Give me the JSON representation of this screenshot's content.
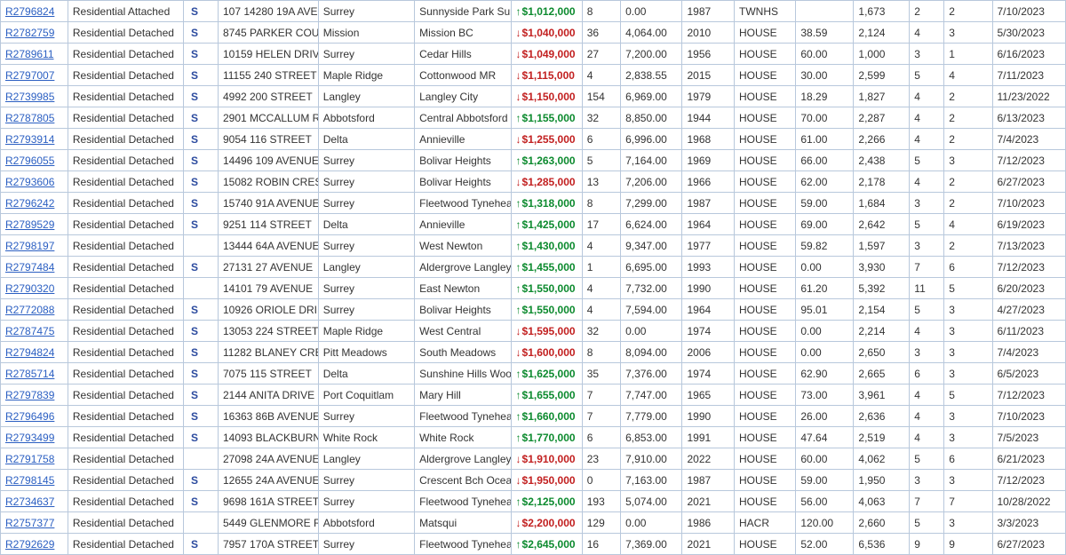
{
  "rows": [
    {
      "mls": "R2796824",
      "type": "Residential Attached",
      "s": "S",
      "addr": "107 14280 19A AVE",
      "city": "Surrey",
      "area": "Sunnyside Park Sur",
      "dir": "up",
      "price": "$1,012,000",
      "dom": "8",
      "lot": "0.00",
      "year": "1987",
      "btype": "TWNHS",
      "age": "",
      "sqft": "1,673",
      "bed": "2",
      "bath": "2",
      "date": "7/10/2023"
    },
    {
      "mls": "R2782759",
      "type": "Residential Detached",
      "s": "S",
      "addr": "8745 PARKER COU",
      "city": "Mission",
      "area": "Mission BC",
      "dir": "down",
      "price": "$1,040,000",
      "dom": "36",
      "lot": "4,064.00",
      "year": "2010",
      "btype": "HOUSE",
      "age": "38.59",
      "sqft": "2,124",
      "bed": "4",
      "bath": "3",
      "date": "5/30/2023"
    },
    {
      "mls": "R2789611",
      "type": "Residential Detached",
      "s": "S",
      "addr": "10159 HELEN DRIV",
      "city": "Surrey",
      "area": "Cedar Hills",
      "dir": "down",
      "price": "$1,049,000",
      "dom": "27",
      "lot": "7,200.00",
      "year": "1956",
      "btype": "HOUSE",
      "age": "60.00",
      "sqft": "1,000",
      "bed": "3",
      "bath": "1",
      "date": "6/16/2023"
    },
    {
      "mls": "R2797007",
      "type": "Residential Detached",
      "s": "S",
      "addr": "11155 240 STREET",
      "city": "Maple Ridge",
      "area": "Cottonwood MR",
      "dir": "down",
      "price": "$1,115,000",
      "dom": "4",
      "lot": "2,838.55",
      "year": "2015",
      "btype": "HOUSE",
      "age": "30.00",
      "sqft": "2,599",
      "bed": "5",
      "bath": "4",
      "date": "7/11/2023"
    },
    {
      "mls": "R2739985",
      "type": "Residential Detached",
      "s": "S",
      "addr": "4992 200 STREET",
      "city": "Langley",
      "area": "Langley City",
      "dir": "down",
      "price": "$1,150,000",
      "dom": "154",
      "lot": "6,969.00",
      "year": "1979",
      "btype": "HOUSE",
      "age": "18.29",
      "sqft": "1,827",
      "bed": "4",
      "bath": "2",
      "date": "11/23/2022"
    },
    {
      "mls": "R2787805",
      "type": "Residential Detached",
      "s": "S",
      "addr": "2901 MCCALLUM R",
      "city": "Abbotsford",
      "area": "Central Abbotsford",
      "dir": "up",
      "price": "$1,155,000",
      "dom": "32",
      "lot": "8,850.00",
      "year": "1944",
      "btype": "HOUSE",
      "age": "70.00",
      "sqft": "2,287",
      "bed": "4",
      "bath": "2",
      "date": "6/13/2023"
    },
    {
      "mls": "R2793914",
      "type": "Residential Detached",
      "s": "S",
      "addr": "9054 116 STREET",
      "city": "Delta",
      "area": "Annieville",
      "dir": "down",
      "price": "$1,255,000",
      "dom": "6",
      "lot": "6,996.00",
      "year": "1968",
      "btype": "HOUSE",
      "age": "61.00",
      "sqft": "2,266",
      "bed": "4",
      "bath": "2",
      "date": "7/4/2023"
    },
    {
      "mls": "R2796055",
      "type": "Residential Detached",
      "s": "S",
      "addr": "14496 109 AVENUE",
      "city": "Surrey",
      "area": "Bolivar Heights",
      "dir": "up",
      "price": "$1,263,000",
      "dom": "5",
      "lot": "7,164.00",
      "year": "1969",
      "btype": "HOUSE",
      "age": "66.00",
      "sqft": "2,438",
      "bed": "5",
      "bath": "3",
      "date": "7/12/2023"
    },
    {
      "mls": "R2793606",
      "type": "Residential Detached",
      "s": "S",
      "addr": "15082 ROBIN CRES",
      "city": "Surrey",
      "area": "Bolivar Heights",
      "dir": "down",
      "price": "$1,285,000",
      "dom": "13",
      "lot": "7,206.00",
      "year": "1966",
      "btype": "HOUSE",
      "age": "62.00",
      "sqft": "2,178",
      "bed": "4",
      "bath": "2",
      "date": "6/27/2023"
    },
    {
      "mls": "R2796242",
      "type": "Residential Detached",
      "s": "S",
      "addr": "15740 91A AVENUE",
      "city": "Surrey",
      "area": "Fleetwood Tynehea",
      "dir": "up",
      "price": "$1,318,000",
      "dom": "8",
      "lot": "7,299.00",
      "year": "1987",
      "btype": "HOUSE",
      "age": "59.00",
      "sqft": "1,684",
      "bed": "3",
      "bath": "2",
      "date": "7/10/2023"
    },
    {
      "mls": "R2789529",
      "type": "Residential Detached",
      "s": "S",
      "addr": "9251 114 STREET",
      "city": "Delta",
      "area": "Annieville",
      "dir": "up",
      "price": "$1,425,000",
      "dom": "17",
      "lot": "6,624.00",
      "year": "1964",
      "btype": "HOUSE",
      "age": "69.00",
      "sqft": "2,642",
      "bed": "5",
      "bath": "4",
      "date": "6/19/2023"
    },
    {
      "mls": "R2798197",
      "type": "Residential Detached",
      "s": "",
      "addr": "13444 64A AVENUE",
      "city": "Surrey",
      "area": "West Newton",
      "dir": "up",
      "price": "$1,430,000",
      "dom": "4",
      "lot": "9,347.00",
      "year": "1977",
      "btype": "HOUSE",
      "age": "59.82",
      "sqft": "1,597",
      "bed": "3",
      "bath": "2",
      "date": "7/13/2023"
    },
    {
      "mls": "R2797484",
      "type": "Residential Detached",
      "s": "S",
      "addr": "27131 27 AVENUE",
      "city": "Langley",
      "area": "Aldergrove Langley",
      "dir": "up",
      "price": "$1,455,000",
      "dom": "1",
      "lot": "6,695.00",
      "year": "1993",
      "btype": "HOUSE",
      "age": "0.00",
      "sqft": "3,930",
      "bed": "7",
      "bath": "6",
      "date": "7/12/2023"
    },
    {
      "mls": "R2790320",
      "type": "Residential Detached",
      "s": "",
      "addr": "14101 79 AVENUE",
      "city": "Surrey",
      "area": "East Newton",
      "dir": "up",
      "price": "$1,550,000",
      "dom": "4",
      "lot": "7,732.00",
      "year": "1990",
      "btype": "HOUSE",
      "age": "61.20",
      "sqft": "5,392",
      "bed": "11",
      "bath": "5",
      "date": "6/20/2023"
    },
    {
      "mls": "R2772088",
      "type": "Residential Detached",
      "s": "S",
      "addr": "10926 ORIOLE DRI",
      "city": "Surrey",
      "area": "Bolivar Heights",
      "dir": "up",
      "price": "$1,550,000",
      "dom": "4",
      "lot": "7,594.00",
      "year": "1964",
      "btype": "HOUSE",
      "age": "95.01",
      "sqft": "2,154",
      "bed": "5",
      "bath": "3",
      "date": "4/27/2023"
    },
    {
      "mls": "R2787475",
      "type": "Residential Detached",
      "s": "S",
      "addr": "13053 224 STREET",
      "city": "Maple Ridge",
      "area": "West Central",
      "dir": "down",
      "price": "$1,595,000",
      "dom": "32",
      "lot": "0.00",
      "year": "1974",
      "btype": "HOUSE",
      "age": "0.00",
      "sqft": "2,214",
      "bed": "4",
      "bath": "3",
      "date": "6/11/2023"
    },
    {
      "mls": "R2794824",
      "type": "Residential Detached",
      "s": "S",
      "addr": "11282 BLANEY CRE",
      "city": "Pitt Meadows",
      "area": "South Meadows",
      "dir": "down",
      "price": "$1,600,000",
      "dom": "8",
      "lot": "8,094.00",
      "year": "2006",
      "btype": "HOUSE",
      "age": "0.00",
      "sqft": "2,650",
      "bed": "3",
      "bath": "3",
      "date": "7/4/2023"
    },
    {
      "mls": "R2785714",
      "type": "Residential Detached",
      "s": "S",
      "addr": "7075 115 STREET",
      "city": "Delta",
      "area": "Sunshine Hills Woo",
      "dir": "up",
      "price": "$1,625,000",
      "dom": "35",
      "lot": "7,376.00",
      "year": "1974",
      "btype": "HOUSE",
      "age": "62.90",
      "sqft": "2,665",
      "bed": "6",
      "bath": "3",
      "date": "6/5/2023"
    },
    {
      "mls": "R2797839",
      "type": "Residential Detached",
      "s": "S",
      "addr": "2144 ANITA DRIVE",
      "city": "Port Coquitlam",
      "area": "Mary Hill",
      "dir": "up",
      "price": "$1,655,000",
      "dom": "7",
      "lot": "7,747.00",
      "year": "1965",
      "btype": "HOUSE",
      "age": "73.00",
      "sqft": "3,961",
      "bed": "4",
      "bath": "5",
      "date": "7/12/2023"
    },
    {
      "mls": "R2796496",
      "type": "Residential Detached",
      "s": "S",
      "addr": "16363 86B AVENUE",
      "city": "Surrey",
      "area": "Fleetwood Tynehea",
      "dir": "up",
      "price": "$1,660,000",
      "dom": "7",
      "lot": "7,779.00",
      "year": "1990",
      "btype": "HOUSE",
      "age": "26.00",
      "sqft": "2,636",
      "bed": "4",
      "bath": "3",
      "date": "7/10/2023"
    },
    {
      "mls": "R2793499",
      "type": "Residential Detached",
      "s": "S",
      "addr": "14093 BLACKBURN",
      "city": "White Rock",
      "area": "White Rock",
      "dir": "up",
      "price": "$1,770,000",
      "dom": "6",
      "lot": "6,853.00",
      "year": "1991",
      "btype": "HOUSE",
      "age": "47.64",
      "sqft": "2,519",
      "bed": "4",
      "bath": "3",
      "date": "7/5/2023"
    },
    {
      "mls": "R2791758",
      "type": "Residential Detached",
      "s": "",
      "addr": "27098 24A AVENUE",
      "city": "Langley",
      "area": "Aldergrove Langley",
      "dir": "down",
      "price": "$1,910,000",
      "dom": "23",
      "lot": "7,910.00",
      "year": "2022",
      "btype": "HOUSE",
      "age": "60.00",
      "sqft": "4,062",
      "bed": "5",
      "bath": "6",
      "date": "6/21/2023"
    },
    {
      "mls": "R2798145",
      "type": "Residential Detached",
      "s": "S",
      "addr": "12655 24A AVENUE",
      "city": "Surrey",
      "area": "Crescent Bch Ocea",
      "dir": "down",
      "price": "$1,950,000",
      "dom": "0",
      "lot": "7,163.00",
      "year": "1987",
      "btype": "HOUSE",
      "age": "59.00",
      "sqft": "1,950",
      "bed": "3",
      "bath": "3",
      "date": "7/12/2023"
    },
    {
      "mls": "R2734637",
      "type": "Residential Detached",
      "s": "S",
      "addr": "9698 161A STREET",
      "city": "Surrey",
      "area": "Fleetwood Tynehea",
      "dir": "up",
      "price": "$2,125,000",
      "dom": "193",
      "lot": "5,074.00",
      "year": "2021",
      "btype": "HOUSE",
      "age": "56.00",
      "sqft": "4,063",
      "bed": "7",
      "bath": "7",
      "date": "10/28/2022"
    },
    {
      "mls": "R2757377",
      "type": "Residential Detached",
      "s": "",
      "addr": "5449 GLENMORE R",
      "city": "Abbotsford",
      "area": "Matsqui",
      "dir": "down",
      "price": "$2,200,000",
      "dom": "129",
      "lot": "0.00",
      "year": "1986",
      "btype": "HACR",
      "age": "120.00",
      "sqft": "2,660",
      "bed": "5",
      "bath": "3",
      "date": "3/3/2023"
    },
    {
      "mls": "R2792629",
      "type": "Residential Detached",
      "s": "S",
      "addr": "7957 170A STREET",
      "city": "Surrey",
      "area": "Fleetwood Tynehea",
      "dir": "up",
      "price": "$2,645,000",
      "dom": "16",
      "lot": "7,369.00",
      "year": "2021",
      "btype": "HOUSE",
      "age": "52.00",
      "sqft": "6,536",
      "bed": "9",
      "bath": "9",
      "date": "6/27/2023"
    }
  ]
}
